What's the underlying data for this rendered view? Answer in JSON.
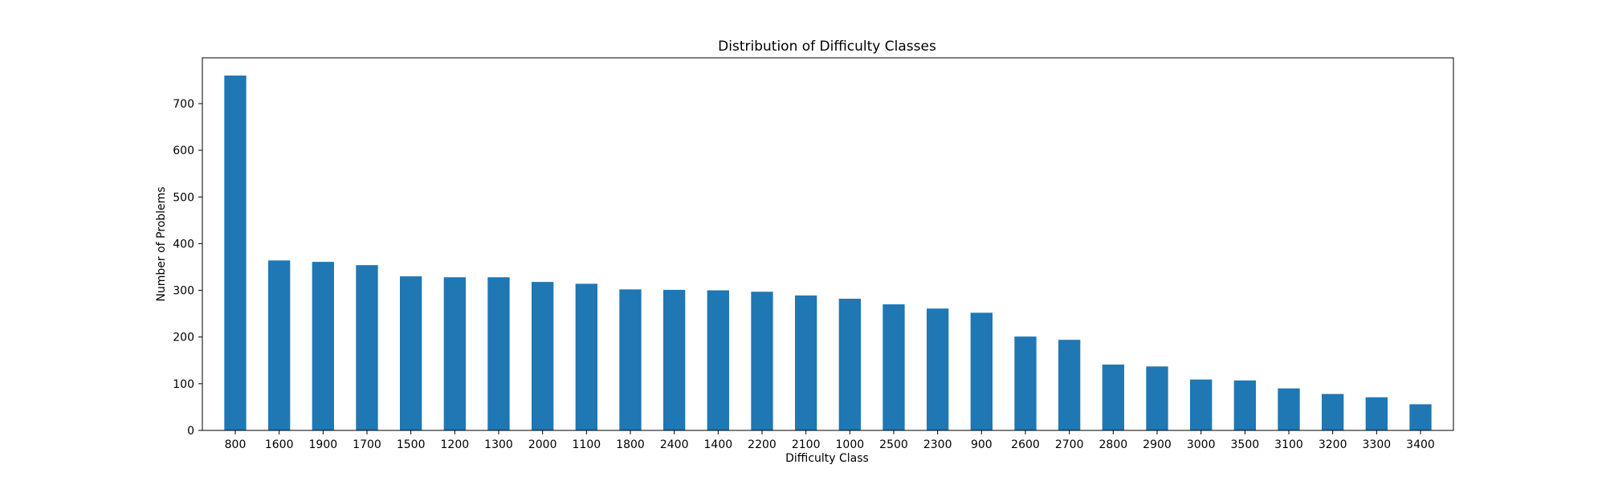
{
  "chart_data": {
    "type": "bar",
    "title": "Distribution of Difficulty Classes",
    "xlabel": "Difficulty Class",
    "ylabel": "Number of Problems",
    "categories": [
      "800",
      "1600",
      "1900",
      "1700",
      "1500",
      "1200",
      "1300",
      "2000",
      "1100",
      "1800",
      "2400",
      "1400",
      "2200",
      "2100",
      "1000",
      "2500",
      "2300",
      "900",
      "2600",
      "2700",
      "2800",
      "2900",
      "3000",
      "3500",
      "3100",
      "3200",
      "3300",
      "3400"
    ],
    "values": [
      760,
      364,
      361,
      354,
      330,
      328,
      328,
      318,
      314,
      302,
      301,
      300,
      297,
      289,
      282,
      270,
      261,
      252,
      201,
      194,
      141,
      137,
      109,
      107,
      90,
      78,
      71,
      56
    ],
    "ylim": [
      0,
      798
    ],
    "yticks": [
      0,
      100,
      200,
      300,
      400,
      500,
      600,
      700
    ],
    "grid": false,
    "legend": "none",
    "bar_color": "#1f77b4"
  }
}
